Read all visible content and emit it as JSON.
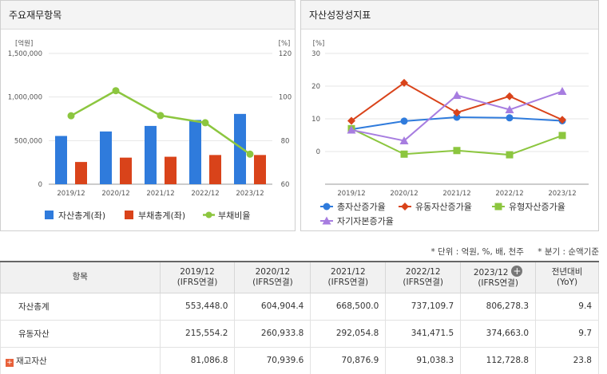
{
  "chart_data": [
    {
      "type": "bar",
      "title": "주요재무항목",
      "categories": [
        "2019/12",
        "2020/12",
        "2021/12",
        "2022/12",
        "2023/12"
      ],
      "left_unit": "[억원]",
      "right_unit": "[%]",
      "left_ylim": [
        0,
        1500000
      ],
      "left_ticks": [
        "0",
        "500,000",
        "1,000,000",
        "1,500,000"
      ],
      "right_ylim": [
        60,
        120
      ],
      "right_ticks": [
        "60",
        "80",
        "100",
        "120"
      ],
      "series": [
        {
          "name": "자산총계(좌)",
          "kind": "bar",
          "axis": "left",
          "color": "#2f7bdc",
          "values": [
            553448,
            604904,
            668500,
            737110,
            806278
          ]
        },
        {
          "name": "부채총계(좌)",
          "kind": "bar",
          "axis": "left",
          "color": "#d9431a",
          "values": [
            255000,
            305000,
            315000,
            335000,
            335000
          ]
        },
        {
          "name": "부채비율",
          "kind": "line",
          "axis": "right",
          "color": "#8cc63f",
          "values": [
            91.4,
            102.9,
            91.5,
            88.2,
            73.8
          ]
        }
      ]
    },
    {
      "type": "line",
      "title": "자산성장성지표",
      "categories": [
        "2019/12",
        "2020/12",
        "2021/12",
        "2022/12",
        "2023/12"
      ],
      "unit": "[%]",
      "ylim": [
        -10,
        30
      ],
      "ticks": [
        "0",
        "10",
        "20",
        "30"
      ],
      "series": [
        {
          "name": "총자산증가율",
          "color": "#2f7bdc",
          "marker": "circle",
          "values": [
            6.8,
            9.3,
            10.5,
            10.3,
            9.4
          ]
        },
        {
          "name": "유동자산증가율",
          "color": "#d9431a",
          "marker": "diamond",
          "values": [
            9.4,
            21.0,
            11.9,
            16.9,
            9.7
          ]
        },
        {
          "name": "유형자산증가율",
          "color": "#8cc63f",
          "marker": "square",
          "values": [
            7.0,
            -0.8,
            0.3,
            -1.0,
            4.9
          ]
        },
        {
          "name": "자기자본증가율",
          "color": "#a77de0",
          "marker": "triangle",
          "values": [
            6.6,
            3.3,
            17.2,
            12.8,
            18.4
          ]
        }
      ]
    }
  ],
  "notes": {
    "unit": "* 단위 : 억원, %, 배, 천주",
    "quarter": "* 분기 : 순액기준"
  },
  "table": {
    "item_header": "항목",
    "yoy_header_1": "전년대비",
    "yoy_header_2": "(YoY)",
    "add_symbol": "+",
    "expand_symbol": "+",
    "columns": [
      {
        "year": "2019/12",
        "std": "(IFRS연결)"
      },
      {
        "year": "2020/12",
        "std": "(IFRS연결)"
      },
      {
        "year": "2021/12",
        "std": "(IFRS연결)"
      },
      {
        "year": "2022/12",
        "std": "(IFRS연결)"
      },
      {
        "year": "2023/12",
        "std": "(IFRS연결)"
      }
    ],
    "rows": [
      {
        "label": "자산총계",
        "values": [
          "553,448.0",
          "604,904.4",
          "668,500.0",
          "737,109.7",
          "806,278.3"
        ],
        "yoy": "9.4"
      },
      {
        "label": "유동자산",
        "values": [
          "215,554.2",
          "260,933.8",
          "292,054.8",
          "341,471.5",
          "374,663.0"
        ],
        "yoy": "9.7"
      },
      {
        "label": "재고자산",
        "values": [
          "81,086.8",
          "70,939.6",
          "70,876.9",
          "91,038.3",
          "112,728.8"
        ],
        "yoy": "23.8"
      }
    ]
  }
}
